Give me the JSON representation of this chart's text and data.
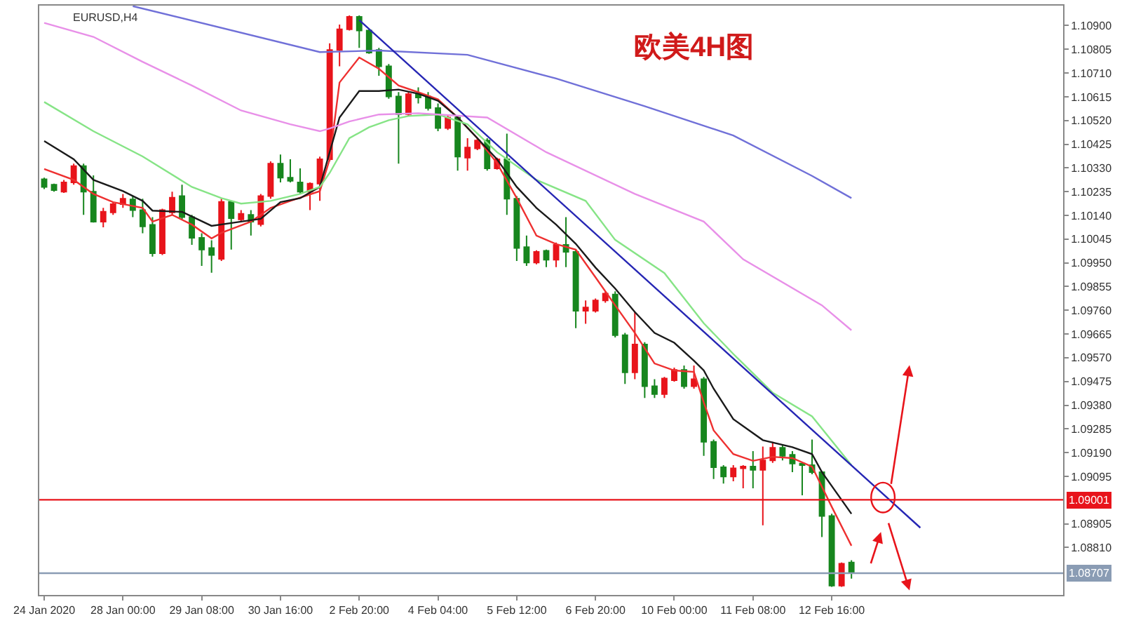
{
  "chart_data": {
    "type": "candlestick",
    "title": "欧美4H图",
    "annotations": [
      "EURUSD,H4"
    ],
    "categories": [
      "24 Jan 2020",
      null,
      null,
      null,
      null,
      null,
      null,
      null,
      "28 Jan 00:00",
      null,
      null,
      null,
      null,
      null,
      null,
      null,
      "29 Jan 08:00",
      null,
      null,
      null,
      null,
      null,
      null,
      null,
      "30 Jan 16:00",
      null,
      null,
      null,
      null,
      null,
      null,
      null,
      "2 Feb 20:00",
      null,
      null,
      null,
      null,
      null,
      null,
      null,
      "4 Feb 04:00",
      null,
      null,
      null,
      null,
      null,
      null,
      null,
      "5 Feb 12:00",
      null,
      null,
      null,
      null,
      null,
      null,
      null,
      "6 Feb 20:00",
      null,
      null,
      null,
      null,
      null,
      null,
      null,
      "10 Feb 00:00",
      null,
      null,
      null,
      null,
      null,
      null,
      null,
      "11 Feb 08:00",
      null,
      null,
      null,
      null,
      null,
      null,
      null,
      "12 Feb 16:00",
      null,
      null,
      null,
      null,
      null,
      null,
      null,
      null,
      null,
      null,
      null,
      null,
      null,
      null,
      null,
      null,
      null,
      null,
      null,
      null,
      null,
      null,
      null
    ],
    "ohlc": [
      [
        1.10285,
        1.10291,
        1.10245,
        1.10254
      ],
      [
        1.10263,
        1.10267,
        1.10235,
        1.10241
      ],
      [
        1.10235,
        1.10282,
        1.1023,
        1.10272
      ],
      [
        1.10272,
        1.10347,
        1.10263,
        1.10337
      ],
      [
        1.10337,
        1.10347,
        1.10142,
        1.10235
      ],
      [
        1.10235,
        1.103,
        1.10111,
        1.10115
      ],
      [
        1.10115,
        1.1017,
        1.10092,
        1.10155
      ],
      [
        1.10152,
        1.10193,
        1.10142,
        1.10185
      ],
      [
        1.10185,
        1.10226,
        1.1017,
        1.10207
      ],
      [
        1.10204,
        1.10217,
        1.10133,
        1.10161
      ],
      [
        1.10161,
        1.10207,
        1.10068,
        1.10096
      ],
      [
        1.10102,
        1.10133,
        1.09975,
        1.09988
      ],
      [
        1.09988,
        1.10167,
        1.09981,
        1.10161
      ],
      [
        1.10152,
        1.10235,
        1.10142,
        1.10211
      ],
      [
        1.10217,
        1.10263,
        1.10124,
        1.10133
      ],
      [
        1.10133,
        1.10142,
        1.10022,
        1.1005
      ],
      [
        1.1005,
        1.10068,
        1.09938,
        1.10003
      ],
      [
        1.10009,
        1.1004,
        1.0991,
        1.09981
      ],
      [
        1.09966,
        1.10207,
        1.09957,
        1.10194
      ],
      [
        1.10194,
        1.10198,
        1.10003,
        1.10129
      ],
      [
        1.10124,
        1.10161,
        1.10115,
        1.10146
      ],
      [
        1.10142,
        1.10161,
        1.10059,
        1.10115
      ],
      [
        1.10105,
        1.10226,
        1.10096,
        1.10217
      ],
      [
        1.10217,
        1.10356,
        1.10207,
        1.10347
      ],
      [
        1.10347,
        1.10384,
        1.10272,
        1.10291
      ],
      [
        1.10291,
        1.10365,
        1.10272,
        1.10278
      ],
      [
        1.10272,
        1.10328,
        1.10226,
        1.10235
      ],
      [
        1.10235,
        1.10272,
        1.10161,
        1.10267
      ],
      [
        1.10267,
        1.10375,
        1.10198,
        1.10365
      ],
      [
        1.10365,
        1.10829,
        1.10356,
        1.10802
      ],
      [
        1.10802,
        1.10904,
        1.10737,
        1.10885
      ],
      [
        1.10885,
        1.10941,
        1.1088,
        1.10935
      ],
      [
        1.10935,
        1.10941,
        1.10811,
        1.1088
      ],
      [
        1.1088,
        1.10885,
        1.10787,
        1.10792
      ],
      [
        1.10802,
        1.10811,
        1.10699,
        1.10737
      ],
      [
        1.10737,
        1.10746,
        1.10607,
        1.10616
      ],
      [
        1.10616,
        1.10634,
        1.10347,
        1.10545
      ],
      [
        1.10545,
        1.10634,
        1.10538,
        1.10625
      ],
      [
        1.10625,
        1.10653,
        1.10588,
        1.10612
      ],
      [
        1.10616,
        1.10634,
        1.1056,
        1.1057
      ],
      [
        1.1057,
        1.10588,
        1.10477,
        1.1049
      ],
      [
        1.1049,
        1.10542,
        1.10482,
        1.10532
      ],
      [
        1.10532,
        1.10542,
        1.10319,
        1.10375
      ],
      [
        1.10371,
        1.10449,
        1.10319,
        1.10412
      ],
      [
        1.10408,
        1.10449,
        1.10401,
        1.1044
      ],
      [
        1.1044,
        1.10449,
        1.10319,
        1.10328
      ],
      [
        1.10328,
        1.10371,
        1.10323,
        1.10365
      ],
      [
        1.10365,
        1.10467,
        1.10142,
        1.10207
      ],
      [
        1.10207,
        1.10217,
        1.09957,
        1.10009
      ],
      [
        1.10013,
        1.10059,
        1.09938,
        1.09951
      ],
      [
        1.09951,
        1.1,
        1.09944,
        1.09994
      ],
      [
        1.09998,
        1.10003,
        1.09933,
        1.09962
      ],
      [
        1.09962,
        1.10031,
        1.09933,
        1.10022
      ],
      [
        1.10022,
        1.10133,
        1.09933,
        1.09994
      ],
      [
        1.09994,
        1.10003,
        1.09688,
        1.09758
      ],
      [
        1.09758,
        1.09799,
        1.09706,
        1.09771
      ],
      [
        1.09758,
        1.09807,
        1.09751,
        1.09799
      ],
      [
        1.09799,
        1.09836,
        1.0979,
        1.09827
      ],
      [
        1.09823,
        1.09836,
        1.09651,
        1.0966
      ],
      [
        1.0966,
        1.09669,
        1.09465,
        1.09511
      ],
      [
        1.09511,
        1.09753,
        1.09484,
        1.09623
      ],
      [
        1.09623,
        1.09632,
        1.09409,
        1.09456
      ],
      [
        1.09456,
        1.09484,
        1.09409,
        1.09424
      ],
      [
        1.09424,
        1.09493,
        1.09409,
        1.09487
      ],
      [
        1.0948,
        1.0953,
        1.09474,
        1.09521
      ],
      [
        1.09521,
        1.09539,
        1.09446,
        1.09456
      ],
      [
        1.09456,
        1.09539,
        1.09446,
        1.09484
      ],
      [
        1.09484,
        1.09493,
        1.09177,
        1.09233
      ],
      [
        1.09233,
        1.09242,
        1.09084,
        1.09131
      ],
      [
        1.09131,
        1.0914,
        1.09066,
        1.09094
      ],
      [
        1.09094,
        1.0914,
        1.09075,
        1.09127
      ],
      [
        1.09127,
        1.0914,
        1.09047,
        1.09134
      ],
      [
        1.09134,
        1.09196,
        1.09047,
        1.09121
      ],
      [
        1.09121,
        1.09214,
        1.08899,
        1.09159
      ],
      [
        1.09159,
        1.09233,
        1.09149,
        1.09209
      ],
      [
        1.09209,
        1.09224,
        1.09159,
        1.09177
      ],
      [
        1.09181,
        1.09196,
        1.09112,
        1.09146
      ],
      [
        1.09146,
        1.09149,
        1.09019,
        1.0914
      ],
      [
        1.0914,
        1.09242,
        1.09103,
        1.09112
      ],
      [
        1.09112,
        1.09116,
        1.08852,
        1.08936
      ],
      [
        1.08936,
        1.08945,
        1.08652,
        1.08657
      ],
      [
        1.08657,
        1.0875,
        1.08652,
        1.08745
      ],
      [
        1.0875,
        1.08759,
        1.08685,
        1.08707
      ],
      null,
      null,
      null,
      null,
      null,
      null,
      null,
      null,
      null,
      null,
      null,
      null,
      null,
      null,
      null,
      null,
      null,
      null,
      null,
      null,
      null
    ],
    "colors": [
      "#17861e",
      "#17861e",
      "#e8141b",
      "#e8141b",
      "#17861e",
      "#17861e",
      "#e8141b",
      "#e8141b",
      "#e8141b",
      "#17861e",
      "#17861e",
      "#17861e",
      "#e8141b",
      "#e8141b",
      "#17861e",
      "#17861e",
      "#17861e",
      "#17861e",
      "#e8141b",
      "#17861e",
      "#e8141b",
      "#17861e",
      "#e8141b",
      "#e8141b",
      "#17861e",
      "#17861e",
      "#17861e",
      "#e8141b",
      "#e8141b",
      "#e8141b",
      "#e8141b",
      "#e8141b",
      "#17861e",
      "#17861e",
      "#17861e",
      "#17861e",
      "#17861e",
      "#e8141b",
      "#17861e",
      "#17861e",
      "#17861e",
      "#e8141b",
      "#17861e",
      "#e8141b",
      "#e8141b",
      "#17861e",
      "#e8141b",
      "#17861e",
      "#17861e",
      "#17861e",
      "#e8141b",
      "#17861e",
      "#e8141b",
      "#17861e",
      "#17861e",
      "#e8141b",
      "#e8141b",
      "#e8141b",
      "#17861e",
      "#17861e",
      "#e8141b",
      "#17861e",
      "#17861e",
      "#e8141b",
      "#e8141b",
      "#17861e",
      "#e8141b",
      "#17861e",
      "#17861e",
      "#17861e",
      "#e8141b",
      "#e8141b",
      "#17861e",
      "#e8141b",
      "#e8141b",
      "#17861e",
      "#17861e",
      "#17861e",
      "#17861e",
      "#17861e",
      "#17861e",
      "#e8141b",
      "#17861e",
      null,
      null,
      null,
      null,
      null,
      null,
      null,
      null,
      null,
      null,
      null,
      null,
      null,
      null,
      null,
      null,
      null,
      null,
      null,
      null,
      null
    ],
    "series": [
      {
        "type": "line",
        "color": "#ee3030",
        "values": [
          1.10326,
          null,
          null,
          1.10282,
          null,
          1.10226,
          null,
          1.10193,
          null,
          null,
          1.1017,
          1.10115,
          null,
          1.10142,
          null,
          1.10103,
          null,
          1.10048,
          1.1007,
          null,
          null,
          1.10115,
          null,
          1.1017,
          null,
          1.10198,
          null,
          null,
          1.10237,
          1.10365,
          1.10672,
          null,
          1.10772,
          null,
          1.10727,
          null,
          1.1066,
          null,
          1.10633,
          null,
          1.10605,
          null,
          1.10532,
          null,
          1.10449,
          null,
          1.10349,
          null,
          1.10209,
          null,
          1.10059,
          null,
          1.10025,
          null,
          1.10003,
          null,
          1.09892,
          null,
          1.0978,
          null,
          1.09669,
          null,
          1.09547,
          null,
          1.09519,
          null,
          1.09513,
          1.09391,
          1.09279,
          null,
          1.09184,
          null,
          1.09157,
          null,
          1.09173,
          null,
          1.09168,
          null,
          1.09134,
          null,
          1.08973,
          null,
          1.08817,
          null,
          null,
          null,
          null,
          null,
          null,
          null,
          null,
          null,
          null,
          null,
          null,
          null,
          null,
          null,
          null,
          null,
          null,
          null,
          null,
          null
        ]
      },
      {
        "type": "line",
        "color": "#1a1a1a",
        "values": [
          1.10438,
          null,
          null,
          1.10365,
          null,
          1.10282,
          null,
          null,
          1.10237,
          null,
          1.10198,
          1.10159,
          null,
          null,
          1.10154,
          null,
          null,
          1.10098,
          null,
          null,
          1.10115,
          null,
          1.10126,
          null,
          1.10193,
          null,
          1.10209,
          null,
          1.10254,
          null,
          1.10532,
          null,
          1.10638,
          null,
          1.10638,
          null,
          1.10644,
          null,
          1.10627,
          null,
          1.10599,
          null,
          1.10532,
          null,
          1.10449,
          null,
          1.10365,
          null,
          1.10254,
          null,
          1.1017,
          null,
          1.10103,
          null,
          1.10026,
          null,
          1.09931,
          null,
          1.09847,
          null,
          1.09753,
          null,
          1.09669,
          null,
          1.0963,
          null,
          1.09558,
          1.09519,
          1.09446,
          null,
          1.09324,
          null,
          null,
          1.0924,
          null,
          null,
          1.09212,
          null,
          1.09184,
          1.09112,
          null,
          null,
          1.08945,
          null,
          null,
          null,
          null,
          null,
          null,
          null,
          null,
          null,
          null,
          null,
          null,
          null,
          null,
          null,
          null,
          null,
          null,
          null,
          null,
          null
        ]
      },
      {
        "type": "line",
        "color": "#86e486",
        "values": [
          1.10594,
          null,
          null,
          null,
          null,
          1.10477,
          null,
          null,
          null,
          null,
          1.10376,
          null,
          null,
          null,
          null,
          1.10254,
          null,
          null,
          1.10209,
          null,
          1.10187,
          null,
          null,
          1.10198,
          null,
          null,
          1.10226,
          null,
          1.10254,
          1.1031,
          null,
          1.10449,
          null,
          1.10493,
          null,
          1.10521,
          null,
          1.10538,
          null,
          null,
          1.10544,
          null,
          null,
          1.10505,
          null,
          null,
          1.10393,
          null,
          null,
          null,
          1.10282,
          null,
          null,
          null,
          null,
          1.10198,
          null,
          null,
          1.10042,
          null,
          null,
          null,
          null,
          1.09909,
          null,
          null,
          null,
          1.09708,
          null,
          null,
          1.09585,
          null,
          null,
          null,
          1.0943,
          null,
          null,
          null,
          1.09335,
          null,
          null,
          null,
          1.0914,
          null,
          null,
          null,
          null,
          null,
          null,
          null,
          null,
          null,
          null,
          null,
          null,
          null,
          null,
          null,
          null,
          null,
          null,
          null,
          null,
          null
        ]
      },
      {
        "type": "line",
        "color": "#e890e8",
        "values": [
          1.10911,
          null,
          null,
          null,
          null,
          1.10855,
          null,
          null,
          null,
          null,
          1.10755,
          null,
          null,
          null,
          null,
          1.1066,
          null,
          null,
          null,
          null,
          1.1056,
          null,
          null,
          null,
          null,
          1.10505,
          null,
          null,
          1.10477,
          1.10488,
          null,
          1.10516,
          null,
          null,
          1.10544,
          null,
          null,
          null,
          1.10549,
          null,
          null,
          null,
          null,
          null,
          null,
          1.10532,
          null,
          null,
          null,
          null,
          null,
          1.10393,
          null,
          null,
          null,
          null,
          null,
          null,
          null,
          null,
          1.10226,
          null,
          null,
          null,
          null,
          null,
          null,
          1.10115,
          null,
          null,
          null,
          1.09964,
          null,
          null,
          null,
          null,
          null,
          null,
          null,
          1.0978,
          null,
          null,
          1.0968,
          null,
          null,
          null,
          null,
          null,
          null,
          null,
          null,
          null,
          null,
          null,
          null,
          null,
          null,
          null,
          null,
          null,
          null,
          null,
          null,
          null
        ]
      },
      {
        "type": "line",
        "color": "#7070d8",
        "values": [
          null,
          null,
          null,
          null,
          null,
          null,
          null,
          null,
          null,
          1.10978,
          null,
          null,
          null,
          null,
          null,
          null,
          null,
          null,
          null,
          null,
          null,
          null,
          null,
          null,
          null,
          null,
          null,
          null,
          1.10794,
          null,
          null,
          null,
          null,
          null,
          1.108,
          null,
          null,
          null,
          null,
          null,
          null,
          null,
          null,
          1.10783,
          null,
          null,
          null,
          null,
          null,
          null,
          null,
          null,
          1.10688,
          null,
          null,
          null,
          null,
          null,
          null,
          null,
          null,
          1.10577,
          null,
          null,
          null,
          null,
          null,
          null,
          null,
          null,
          1.1046,
          null,
          null,
          null,
          null,
          null,
          null,
          null,
          1.10298,
          null,
          null,
          null,
          1.10209,
          null,
          null,
          null,
          null,
          null,
          null,
          null,
          null,
          null,
          null,
          null,
          null,
          null,
          null,
          null,
          null,
          null,
          null,
          null,
          null,
          null
        ]
      },
      {
        "type": "line",
        "color": "#2626b4",
        "values": [
          null,
          null,
          null,
          null,
          null,
          null,
          null,
          null,
          null,
          null,
          null,
          null,
          null,
          null,
          null,
          null,
          null,
          null,
          null,
          null,
          null,
          null,
          null,
          null,
          null,
          null,
          null,
          null,
          null,
          null,
          null,
          null,
          1.10922,
          null,
          null,
          null,
          null,
          null,
          null,
          null,
          null,
          null,
          null,
          null,
          null,
          null,
          null,
          null,
          null,
          null,
          null,
          null,
          null,
          null,
          null,
          null,
          null,
          null,
          null,
          null,
          null,
          null,
          null,
          null,
          null,
          null,
          null,
          null,
          null,
          null,
          null,
          null,
          null,
          null,
          null,
          null,
          null,
          null,
          null,
          null,
          null,
          null,
          null,
          null,
          null,
          null,
          null,
          null,
          null,
          1.08889,
          null,
          null,
          null,
          null,
          null,
          null,
          null,
          null,
          null,
          null,
          null,
          null,
          null,
          null
        ]
      }
    ],
    "ref_lines": [
      {
        "axis": "y",
        "value": 1.09001,
        "label": "1.09001",
        "color": "#e8141b"
      },
      {
        "axis": "y",
        "value": 1.08707,
        "label": "1.08707",
        "color": "#8a9cb4"
      }
    ],
    "ylim": [
      1.0862,
      1.1098
    ],
    "yticks": [
      {
        "value": 1.109,
        "label": "1.10900"
      },
      {
        "value": 1.10805,
        "label": "1.10805"
      },
      {
        "value": 1.1071,
        "label": "1.10710"
      },
      {
        "value": 1.10615,
        "label": "1.10615"
      },
      {
        "value": 1.1052,
        "label": "1.10520"
      },
      {
        "value": 1.10425,
        "label": "1.10425"
      },
      {
        "value": 1.1033,
        "label": "1.10330"
      },
      {
        "value": 1.10235,
        "label": "1.10235"
      },
      {
        "value": 1.1014,
        "label": "1.10140"
      },
      {
        "value": 1.10045,
        "label": "1.10045"
      },
      {
        "value": 1.0995,
        "label": "1.09950"
      },
      {
        "value": 1.09855,
        "label": "1.09855"
      },
      {
        "value": 1.0976,
        "label": "1.09760"
      },
      {
        "value": 1.09665,
        "label": "1.09665"
      },
      {
        "value": 1.0957,
        "label": "1.09570"
      },
      {
        "value": 1.09475,
        "label": "1.09475"
      },
      {
        "value": 1.0938,
        "label": "1.09380"
      },
      {
        "value": 1.09285,
        "label": "1.09285"
      },
      {
        "value": 1.0919,
        "label": "1.09190"
      },
      {
        "value": 1.09095,
        "label": "1.09095"
      },
      {
        "value": 1.08905,
        "label": "1.08905"
      },
      {
        "value": 1.0881,
        "label": "1.08810"
      }
    ]
  }
}
